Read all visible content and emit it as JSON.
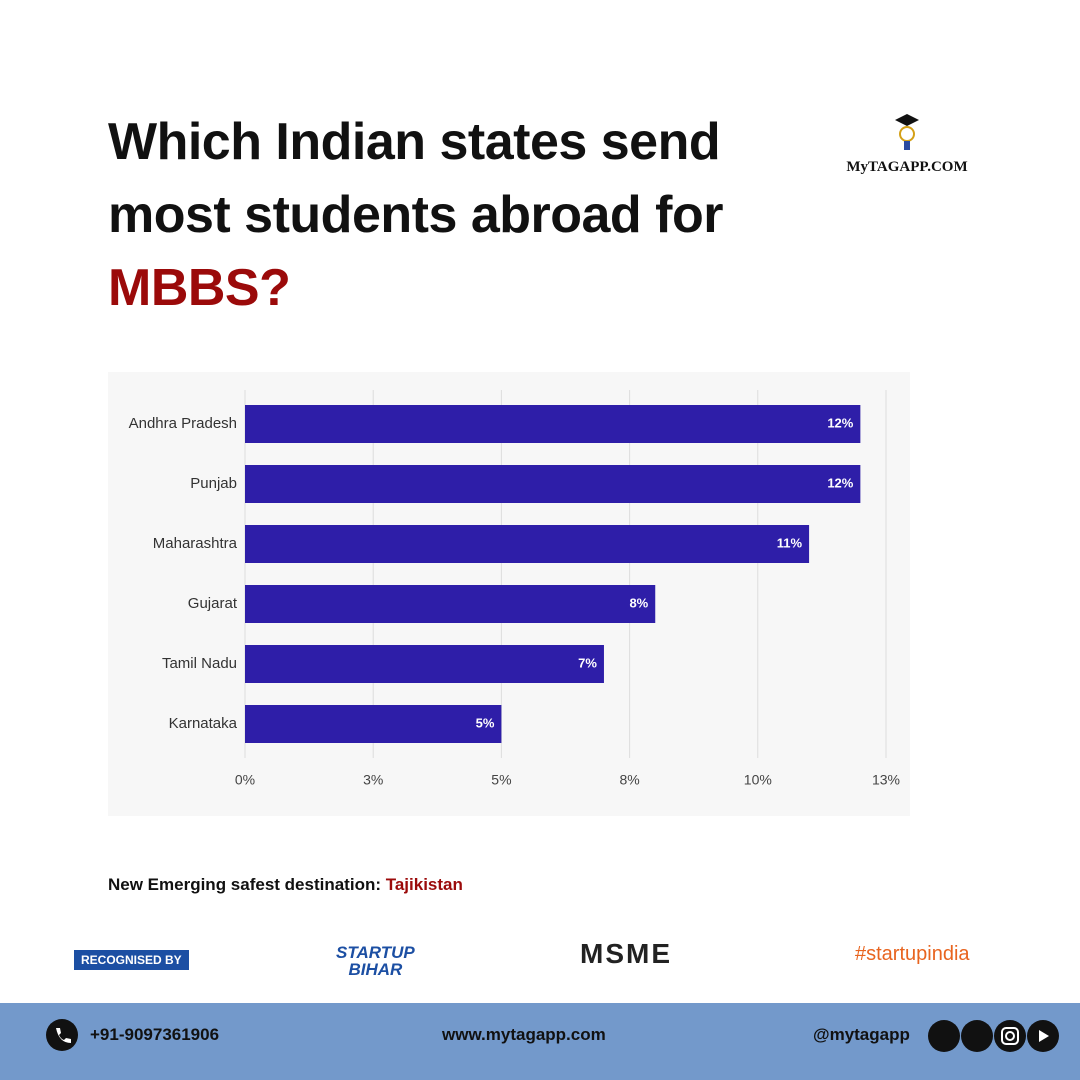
{
  "header": {
    "title_lines": [
      "Which Indian states send",
      "most students abroad for"
    ],
    "highlight": "MBBS?"
  },
  "logo": {
    "name": "MyTAGAPP.COM"
  },
  "chart_data": {
    "type": "bar",
    "orientation": "horizontal",
    "categories": [
      "Andhra Pradesh",
      "Punjab",
      "Maharashtra",
      "Gujarat",
      "Tamil Nadu",
      "Karnataka"
    ],
    "values": [
      12,
      12,
      11,
      8,
      7,
      5
    ],
    "value_labels": [
      "12%",
      "12%",
      "11%",
      "8%",
      "7%",
      "5%"
    ],
    "color": "#2e1ea8",
    "xlim": [
      0,
      12.5
    ],
    "xticks": [
      {
        "value": 0,
        "label": "0%"
      },
      {
        "value": 2.5,
        "label": "3%"
      },
      {
        "value": 5,
        "label": "5%"
      },
      {
        "value": 7.5,
        "label": "8%"
      },
      {
        "value": 10,
        "label": "10%"
      },
      {
        "value": 12.5,
        "label": "13%"
      }
    ],
    "grid": true
  },
  "note": {
    "text": "New Emerging safest destination:",
    "highlight": "Tajikistan"
  },
  "recognition": {
    "label": "RECOGNISED BY",
    "startup_bihar": [
      "STARTUP",
      "BIHAR"
    ],
    "msme": "MSME",
    "startupindia": "#startupindia"
  },
  "footer": {
    "phone": "+91-9097361906",
    "website": "www.mytagapp.com",
    "handle": "@mytagapp"
  }
}
